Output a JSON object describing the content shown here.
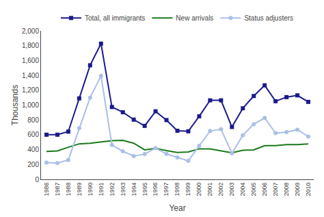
{
  "chart_data": {
    "type": "line",
    "xlabel": "Year",
    "ylabel": "Thousands",
    "x": [
      1986,
      1987,
      1988,
      1989,
      1990,
      1991,
      1992,
      1993,
      1994,
      1995,
      1996,
      1997,
      1998,
      1999,
      2000,
      2001,
      2002,
      2003,
      2004,
      2005,
      2006,
      2007,
      2008,
      2009,
      2010
    ],
    "series": [
      {
        "name": "Total, all immigrants",
        "color": "#1a1a8c",
        "marker": "square",
        "values": [
          601,
          601,
          643,
          1090,
          1536,
          1827,
          974,
          904,
          804,
          720,
          916,
          798,
          654,
          647,
          849,
          1064,
          1064,
          705,
          957,
          1122,
          1266,
          1052,
          1107,
          1131,
          1043
        ]
      },
      {
        "name": "New arrivals",
        "color": "#1a7a1a",
        "marker": "none",
        "values": [
          376,
          382,
          432,
          478,
          487,
          503,
          521,
          525,
          487,
          397,
          417,
          387,
          362,
          368,
          411,
          411,
          384,
          358,
          392,
          397,
          454,
          455,
          468,
          467,
          476
        ]
      },
      {
        "name": "Status adjusters",
        "color": "#aabfe8",
        "marker": "circle",
        "values": [
          225,
          219,
          261,
          689,
          1100,
          1394,
          463,
          378,
          314,
          340,
          421,
          343,
          294,
          249,
          452,
          651,
          674,
          350,
          595,
          743,
          827,
          622,
          637,
          669,
          576
        ]
      }
    ],
    "xlim": [
      1985.5,
      2010.5
    ],
    "xticks": [
      1986,
      1987,
      1988,
      1989,
      1990,
      1991,
      1992,
      1993,
      1994,
      1995,
      1996,
      1997,
      1998,
      1999,
      2000,
      2001,
      2002,
      2003,
      2004,
      2005,
      2006,
      2007,
      2008,
      2009,
      2010
    ],
    "ylim": [
      0,
      2000
    ],
    "yticks": [
      0,
      200,
      400,
      600,
      800,
      {
        "value": 1000,
        "label": "1,000"
      },
      {
        "value": 1200,
        "label": "1,200"
      },
      {
        "value": 1400,
        "label": "1,400"
      },
      {
        "value": 1600,
        "label": "1,600"
      },
      {
        "value": 1800,
        "label": "1,800"
      },
      {
        "value": 2000,
        "label": "2,000"
      }
    ],
    "grid": false,
    "legend": "top"
  }
}
